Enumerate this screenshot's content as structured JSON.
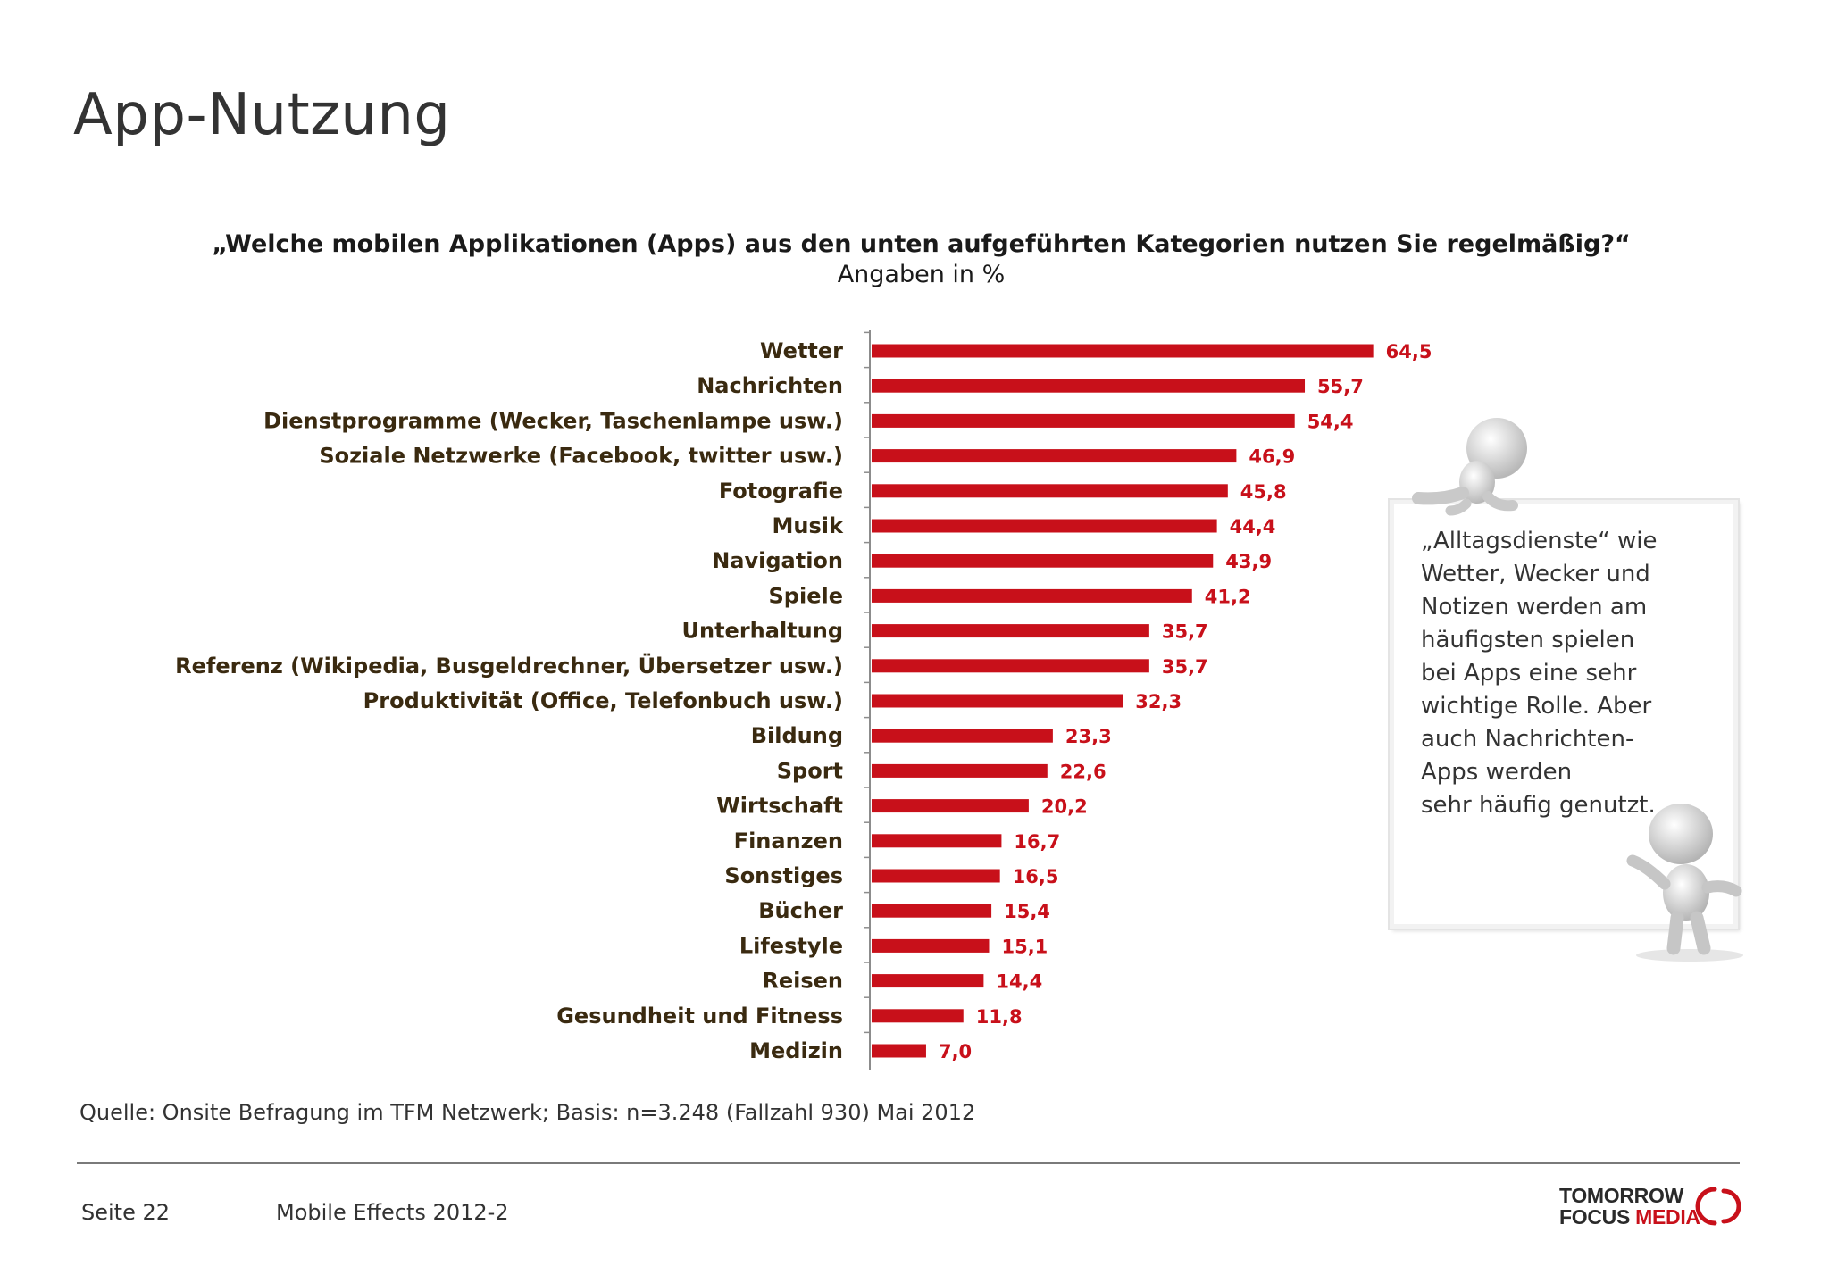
{
  "page": {
    "title": "App-Nutzung",
    "source": "Quelle: Onsite Befragung im TFM Netzwerk; Basis: n=3.248 (Fallzahl 930) Mai 2012",
    "footer_page": "Seite 22",
    "footer_doc": "Mobile Effects 2012-2",
    "logo": {
      "line1": "TOMORROW",
      "line2_dark": "FOCUS",
      "line2_accent": "MEDIA"
    }
  },
  "callout": {
    "lines": [
      "„Alltagsdienste“ wie",
      "Wetter, Wecker und",
      "Notizen werden am",
      "häufigsten spielen",
      "bei Apps eine sehr",
      "wichtige Rolle. Aber",
      "auch Nachrichten-",
      "Apps werden",
      "sehr häufig genutzt."
    ]
  },
  "colors": {
    "bar": "#c8101a",
    "value_label": "#c8101a",
    "category_label": "#3a2a10",
    "axis": "#8c8c8c"
  },
  "chart_data": {
    "type": "bar",
    "orientation": "horizontal",
    "title": "„Welche mobilen Applikationen (Apps) aus den unten aufgeführten Kategorien nutzen Sie regelmäßig?“",
    "subtitle": "Angaben in %",
    "categories": [
      "Wetter",
      "Nachrichten",
      "Dienstprogramme (Wecker, Taschenlampe usw.)",
      "Soziale Netzwerke (Facebook, twitter usw.)",
      "Fotografie",
      "Musik",
      "Navigation",
      "Spiele",
      "Unterhaltung",
      "Referenz (Wikipedia, Busgeldrechner, Übersetzer usw.)",
      "Produktivität (Office, Telefonbuch usw.)",
      "Bildung",
      "Sport",
      "Wirtschaft",
      "Finanzen",
      "Sonstiges",
      "Bücher",
      "Lifestyle",
      "Reisen",
      "Gesundheit und Fitness",
      "Medizin"
    ],
    "values": [
      64.5,
      55.7,
      54.4,
      46.9,
      45.8,
      44.4,
      43.9,
      41.2,
      35.7,
      35.7,
      32.3,
      23.3,
      22.6,
      20.2,
      16.7,
      16.5,
      15.4,
      15.1,
      14.4,
      11.8,
      7.0
    ],
    "value_labels": [
      "64,5",
      "55,7",
      "54,4",
      "46,9",
      "45,8",
      "44,4",
      "43,9",
      "41,2",
      "35,7",
      "35,7",
      "32,3",
      "23,3",
      "22,6",
      "20,2",
      "16,7",
      "16,5",
      "15,4",
      "15,1",
      "14,4",
      "11,8",
      "7,0"
    ],
    "xlim": [
      0,
      100
    ],
    "grid": false,
    "legend": "none"
  }
}
